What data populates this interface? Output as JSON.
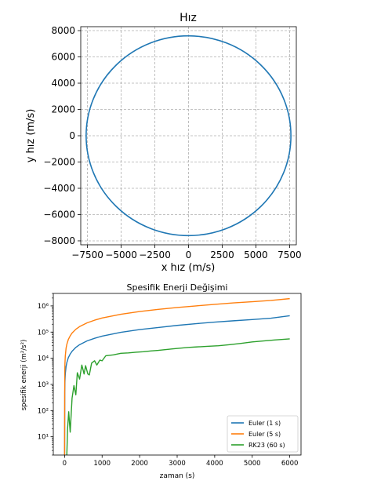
{
  "chart_data": [
    {
      "type": "line",
      "title": "Hız",
      "xlabel": "x hız (m/s)",
      "ylabel": "y hız (m/s)",
      "xlim": [
        -8000,
        8000
      ],
      "ylim": [
        -8300,
        8300
      ],
      "xticks": [
        -7500,
        -5000,
        -2500,
        0,
        2500,
        5000,
        7500
      ],
      "xtick_labels": [
        "−7500",
        "−5000",
        "−2500",
        "0",
        "2500",
        "5000",
        "7500"
      ],
      "yticks": [
        -8000,
        -6000,
        -4000,
        -2000,
        0,
        2000,
        4000,
        6000,
        8000
      ],
      "ytick_labels": [
        "−8000",
        "−6000",
        "−4000",
        "−2000",
        "0",
        "2000",
        "4000",
        "6000",
        "8000"
      ],
      "grid": true,
      "series": [
        {
          "shape": "circle",
          "center": [
            0,
            0
          ],
          "radius": 7600,
          "color": "#1f77b4"
        }
      ]
    },
    {
      "type": "line",
      "title": "Spesifik Enerji Değişimi",
      "xlabel": "zaman (s)",
      "ylabel": "spesifik enerji (m²/s²)",
      "xlim": [
        -300,
        6300
      ],
      "ylim": [
        2,
        3000000
      ],
      "yscale": "log",
      "xticks": [
        0,
        1000,
        2000,
        3000,
        4000,
        5000,
        6000
      ],
      "xtick_labels": [
        "0",
        "1000",
        "2000",
        "3000",
        "4000",
        "5000",
        "6000"
      ],
      "yticks": [
        10,
        100,
        1000,
        10000,
        100000,
        1000000
      ],
      "ytick_labels": [
        "10¹",
        "10²",
        "10³",
        "10⁴",
        "10⁵",
        "10⁶"
      ],
      "grid": false,
      "legend": "lower-right",
      "series": [
        {
          "name": "Euler (1 s)",
          "color": "#1f77b4",
          "points": [
            [
              1,
              2
            ],
            [
              5,
              500
            ],
            [
              10,
              1300
            ],
            [
              20,
              2600
            ],
            [
              40,
              4800
            ],
            [
              60,
              6800
            ],
            [
              100,
              10500
            ],
            [
              150,
              14500
            ],
            [
              200,
              18500
            ],
            [
              300,
              26000
            ],
            [
              400,
              33000
            ],
            [
              600,
              46000
            ],
            [
              800,
              58000
            ],
            [
              1000,
              70000
            ],
            [
              1500,
              98000
            ],
            [
              2000,
              125000
            ],
            [
              2500,
              150000
            ],
            [
              3000,
              180000
            ],
            [
              3500,
              210000
            ],
            [
              4000,
              240000
            ],
            [
              4500,
              270000
            ],
            [
              5000,
              300000
            ],
            [
              5500,
              340000
            ],
            [
              6000,
              420000
            ]
          ]
        },
        {
          "name": "Euler (5 s)",
          "color": "#ff7f0e",
          "points": [
            [
              1,
              2
            ],
            [
              5,
              2600
            ],
            [
              10,
              6300
            ],
            [
              20,
              12500
            ],
            [
              40,
              24000
            ],
            [
              60,
              34000
            ],
            [
              100,
              52000
            ],
            [
              150,
              72000
            ],
            [
              200,
              92000
            ],
            [
              300,
              128000
            ],
            [
              400,
              162000
            ],
            [
              600,
              225000
            ],
            [
              800,
              285000
            ],
            [
              1000,
              345000
            ],
            [
              1500,
              480000
            ],
            [
              2000,
              610000
            ],
            [
              2500,
              740000
            ],
            [
              3000,
              870000
            ],
            [
              3500,
              1000000
            ],
            [
              4000,
              1150000
            ],
            [
              4500,
              1300000
            ],
            [
              5000,
              1450000
            ],
            [
              5500,
              1620000
            ],
            [
              6000,
              1900000
            ]
          ]
        },
        {
          "name": "RK23 (60 s)",
          "color": "#2ca02c",
          "points": [
            [
              60,
              2
            ],
            [
              80,
              20
            ],
            [
              110,
              90
            ],
            [
              150,
              15
            ],
            [
              200,
              300
            ],
            [
              250,
              900
            ],
            [
              300,
              400
            ],
            [
              340,
              2800
            ],
            [
              400,
              1600
            ],
            [
              460,
              5500
            ],
            [
              520,
              2500
            ],
            [
              560,
              5200
            ],
            [
              620,
              2500
            ],
            [
              660,
              2300
            ],
            [
              720,
              6500
            ],
            [
              800,
              8000
            ],
            [
              860,
              5500
            ],
            [
              940,
              8500
            ],
            [
              1000,
              8000
            ],
            [
              1100,
              12500
            ],
            [
              1300,
              13500
            ],
            [
              1500,
              15500
            ],
            [
              1700,
              16000
            ],
            [
              1900,
              17000
            ],
            [
              2100,
              17800
            ],
            [
              2300,
              19000
            ],
            [
              2500,
              20000
            ],
            [
              2700,
              21500
            ],
            [
              2900,
              23000
            ],
            [
              3100,
              24500
            ],
            [
              3300,
              26000
            ],
            [
              3500,
              27000
            ],
            [
              3800,
              28500
            ],
            [
              4100,
              30000
            ],
            [
              4400,
              33000
            ],
            [
              4700,
              37000
            ],
            [
              5000,
              42000
            ],
            [
              5300,
              46000
            ],
            [
              5600,
              50000
            ],
            [
              6000,
              55000
            ]
          ]
        }
      ]
    }
  ]
}
